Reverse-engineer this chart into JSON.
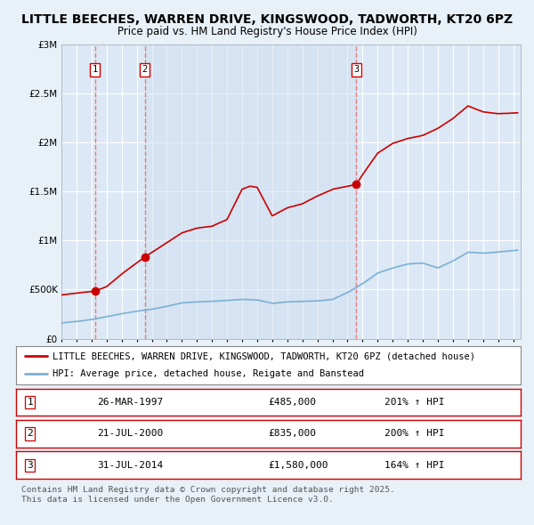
{
  "title1": "LITTLE BEECHES, WARREN DRIVE, KINGSWOOD, TADWORTH, KT20 6PZ",
  "title2": "Price paid vs. HM Land Registry's House Price Index (HPI)",
  "bg_color": "#e8f0f8",
  "plot_bg_color": "#dce8f5",
  "grid_color": "#ffffff",
  "hpi_line_color": "#7ab0d4",
  "price_line_color": "#cc0000",
  "sale_marker_color": "#cc0000",
  "dashed_line_color": "#e87070",
  "shade_color": "#c8d8ee",
  "ylim": [
    0,
    3000000
  ],
  "yticks": [
    0,
    500000,
    1000000,
    1500000,
    2000000,
    2500000,
    3000000
  ],
  "xmin": 1995.0,
  "xmax": 2025.5,
  "legend_line1": "LITTLE BEECHES, WARREN DRIVE, KINGSWOOD, TADWORTH, KT20 6PZ (detached house)",
  "legend_line2": "HPI: Average price, detached house, Reigate and Banstead",
  "sale1_date": "26-MAR-1997",
  "sale1_price": 485000,
  "sale1_x": 1997.23,
  "sale1_pct": "201%",
  "sale2_date": "21-JUL-2000",
  "sale2_price": 835000,
  "sale2_x": 2000.54,
  "sale2_pct": "200%",
  "sale3_date": "31-JUL-2014",
  "sale3_price": 1580000,
  "sale3_x": 2014.58,
  "sale3_pct": "164%",
  "footer": "Contains HM Land Registry data © Crown copyright and database right 2025.\nThis data is licensed under the Open Government Licence v3.0."
}
